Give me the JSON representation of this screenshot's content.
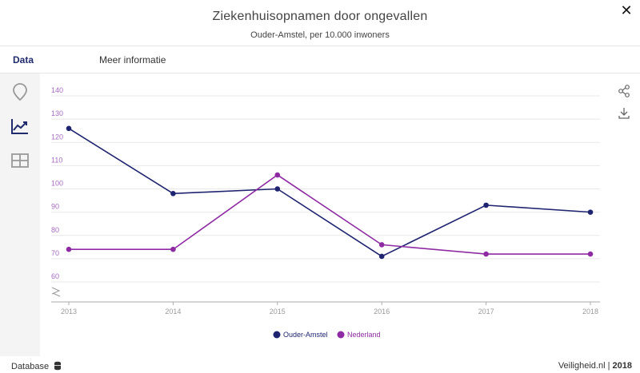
{
  "header": {
    "title": "Ziekenhuisopnamen door ongevallen",
    "subtitle": "Ouder-Amstel, per 10.000 inwoners",
    "close_icon": "close-icon"
  },
  "tabs": [
    {
      "label": "Data",
      "active": true
    },
    {
      "label": "Meer informatie",
      "active": false
    }
  ],
  "sidebar": {
    "items": [
      {
        "icon": "map-pin-icon"
      },
      {
        "icon": "line-chart-icon",
        "active": true
      },
      {
        "icon": "table-icon"
      }
    ]
  },
  "tools": [
    {
      "icon": "share-icon"
    },
    {
      "icon": "download-icon"
    }
  ],
  "chart_data": {
    "type": "line",
    "title": "",
    "xlabel": "",
    "ylabel": "",
    "x": [
      "2013",
      "2014",
      "2015",
      "2016",
      "2017",
      "2018"
    ],
    "ylim": [
      60,
      140
    ],
    "yticks": [
      "60",
      "70",
      "80",
      "90",
      "100",
      "110",
      "120",
      "130",
      "140"
    ],
    "axis_break": true,
    "grid": true,
    "legend_position": "bottom",
    "series": [
      {
        "name": "Ouder-Amstel",
        "color": "#1f2470",
        "values": [
          126,
          98,
          100,
          71,
          93,
          90
        ]
      },
      {
        "name": "Nederland",
        "color": "#8e2ba3",
        "values": [
          74,
          74,
          106,
          76,
          72,
          72
        ]
      }
    ]
  },
  "footer": {
    "left_label": "Database",
    "right_site": "Veiligheid.nl",
    "right_sep": " | ",
    "right_year": "2018"
  }
}
